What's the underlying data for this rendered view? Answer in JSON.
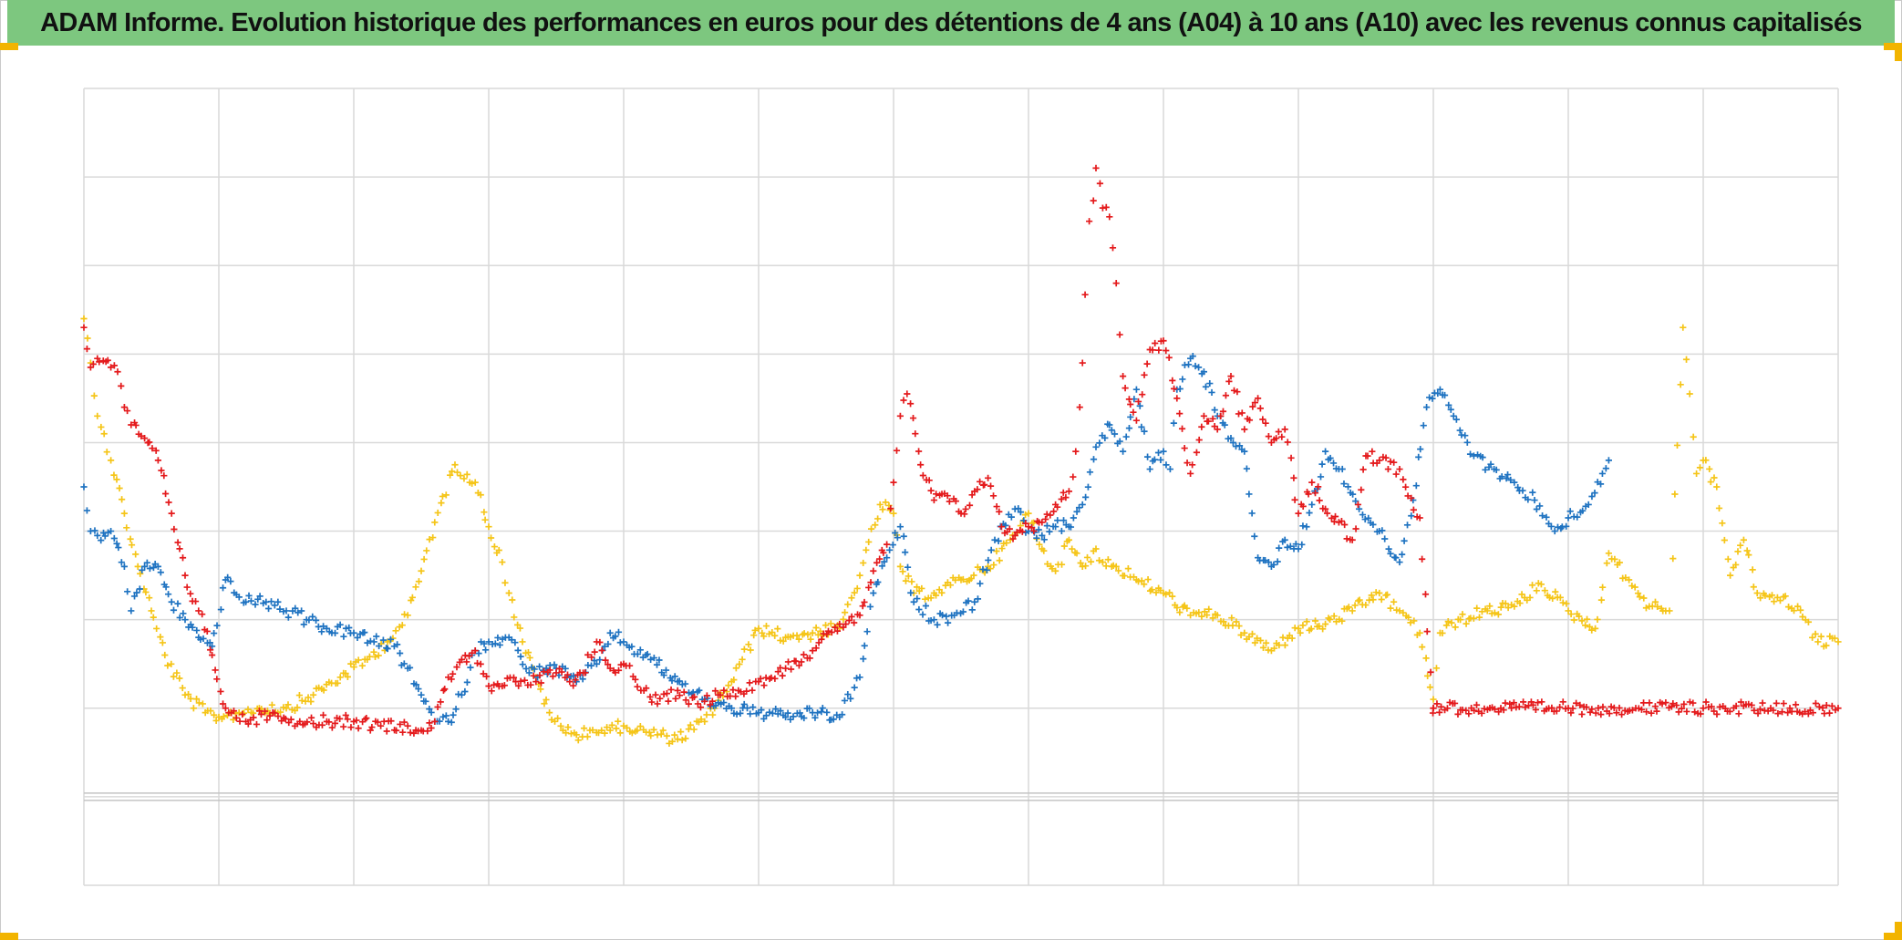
{
  "chart_data": {
    "type": "scatter",
    "title": "ADAM Informe. Evolution historique des performances en euros pour des détentions de 4 ans (A04) à 10 ans (A10) avec les revenus connus capitalisés",
    "xlabel": "",
    "ylabel": "",
    "grid": true,
    "legend": "none",
    "marker": "plus",
    "xlim": [
      0,
      13
    ],
    "ylim": [
      -1,
      8
    ],
    "series": [
      {
        "color": "#f5c518",
        "x": [
          0.0,
          0.05,
          0.1,
          0.15,
          0.2,
          0.3,
          0.4,
          0.5,
          0.6,
          0.75,
          0.9,
          1.0,
          1.15,
          1.3,
          1.5,
          1.7,
          1.9,
          2.1,
          2.25,
          2.4,
          2.5,
          2.6,
          2.75,
          2.9,
          3.0,
          3.1,
          3.15,
          3.25,
          3.35,
          3.45,
          3.55,
          3.65,
          3.75,
          3.9,
          4.0,
          4.1,
          4.25,
          4.4,
          4.6,
          4.8,
          5.0,
          5.2,
          5.4,
          5.6,
          5.75,
          5.9,
          6.0,
          6.05,
          6.15,
          6.3,
          6.5,
          6.7,
          6.9,
          7.0,
          7.1,
          7.2,
          7.3,
          7.4,
          7.5,
          7.55,
          7.65,
          7.8,
          8.0,
          8.2,
          8.4,
          8.6,
          8.8,
          9.0,
          9.2,
          9.4,
          9.6,
          9.75,
          9.9,
          10.0,
          10.05,
          10.2,
          10.4,
          10.6,
          10.8,
          11.0,
          11.2,
          11.3,
          11.45,
          11.6,
          11.75,
          11.85,
          11.9,
          11.95,
          12.0,
          12.1,
          12.2,
          12.3,
          12.4,
          12.55,
          12.7,
          12.85,
          13.0
        ],
        "values": [
          5.4,
          4.9,
          4.3,
          4.1,
          3.8,
          3.2,
          2.6,
          2.1,
          1.6,
          1.15,
          0.95,
          0.9,
          0.95,
          1.0,
          1.0,
          1.15,
          1.35,
          1.55,
          1.75,
          2.05,
          2.55,
          3.1,
          3.75,
          3.55,
          3.05,
          2.65,
          2.3,
          1.75,
          1.35,
          0.95,
          0.75,
          0.7,
          0.75,
          0.75,
          0.8,
          0.75,
          0.7,
          0.65,
          0.85,
          1.3,
          1.9,
          1.8,
          1.85,
          1.9,
          2.5,
          3.3,
          3.2,
          2.6,
          2.3,
          2.3,
          2.45,
          2.6,
          2.95,
          3.2,
          2.8,
          2.55,
          2.9,
          2.6,
          2.8,
          2.65,
          2.6,
          2.45,
          2.3,
          2.05,
          2.05,
          1.85,
          1.65,
          1.9,
          1.95,
          2.1,
          2.3,
          2.1,
          1.85,
          1.1,
          1.85,
          2.0,
          2.1,
          2.15,
          2.4,
          2.1,
          1.9,
          2.75,
          2.45,
          2.15,
          2.1,
          5.3,
          4.55,
          3.65,
          3.8,
          3.5,
          2.5,
          2.9,
          2.3,
          2.25,
          2.15,
          1.75,
          1.75
        ]
      },
      {
        "color": "#1f73c1",
        "x": [
          0.0,
          0.05,
          0.1,
          0.2,
          0.3,
          0.35,
          0.45,
          0.55,
          0.65,
          0.75,
          0.85,
          0.95,
          1.05,
          1.2,
          1.35,
          1.5,
          1.65,
          1.8,
          2.0,
          2.15,
          2.3,
          2.4,
          2.5,
          2.6,
          2.7,
          2.8,
          2.9,
          3.0,
          3.15,
          3.3,
          3.5,
          3.65,
          3.8,
          3.9,
          4.0,
          4.2,
          4.4,
          4.6,
          4.8,
          5.0,
          5.2,
          5.4,
          5.6,
          5.75,
          5.85,
          5.95,
          6.05,
          6.15,
          6.3,
          6.45,
          6.6,
          6.75,
          6.9,
          7.0,
          7.1,
          7.2,
          7.3,
          7.4,
          7.5,
          7.6,
          7.7,
          7.8,
          7.9,
          8.0,
          8.05,
          8.1,
          8.2,
          8.3,
          8.4,
          8.5,
          8.6,
          8.7,
          8.8,
          8.9,
          9.0,
          9.1,
          9.2,
          9.3,
          9.45,
          9.6,
          9.75,
          9.85,
          9.95,
          10.05,
          10.15,
          10.3,
          10.45,
          10.6,
          10.75,
          10.9,
          11.0,
          11.15,
          11.3
        ],
        "values": [
          3.5,
          3.0,
          2.95,
          3.0,
          2.6,
          2.1,
          2.6,
          2.6,
          2.2,
          2.0,
          1.8,
          1.7,
          2.45,
          2.2,
          2.2,
          2.1,
          2.0,
          1.9,
          1.85,
          1.75,
          1.7,
          1.45,
          1.15,
          0.85,
          0.85,
          1.15,
          1.65,
          1.75,
          1.8,
          1.4,
          1.45,
          1.3,
          1.5,
          1.85,
          1.75,
          1.55,
          1.3,
          1.1,
          1.0,
          0.95,
          0.9,
          0.95,
          0.9,
          1.35,
          2.3,
          2.7,
          3.05,
          2.2,
          2.0,
          2.05,
          2.2,
          2.9,
          3.25,
          3.0,
          2.95,
          3.05,
          3.05,
          3.3,
          3.95,
          4.2,
          3.9,
          4.6,
          3.7,
          3.9,
          3.7,
          4.6,
          4.95,
          4.8,
          4.3,
          4.05,
          3.9,
          2.7,
          2.6,
          2.9,
          2.8,
          3.3,
          3.9,
          3.7,
          3.25,
          3.0,
          2.65,
          3.35,
          4.4,
          4.6,
          4.3,
          3.85,
          3.7,
          3.55,
          3.35,
          3.0,
          3.15,
          3.3,
          3.8
        ]
      },
      {
        "color": "#e41a1c",
        "x": [
          0.0,
          0.05,
          0.1,
          0.2,
          0.25,
          0.3,
          0.35,
          0.45,
          0.55,
          0.65,
          0.75,
          0.85,
          0.95,
          1.05,
          1.2,
          1.4,
          1.6,
          1.8,
          2.0,
          2.2,
          2.4,
          2.5,
          2.6,
          2.7,
          2.8,
          2.9,
          3.0,
          3.1,
          3.2,
          3.35,
          3.5,
          3.6,
          3.7,
          3.8,
          3.9,
          4.0,
          4.15,
          4.25,
          4.4,
          4.55,
          4.7,
          4.85,
          5.0,
          5.2,
          5.4,
          5.6,
          5.75,
          5.85,
          5.95,
          6.0,
          6.05,
          6.1,
          6.2,
          6.3,
          6.4,
          6.5,
          6.6,
          6.7,
          6.8,
          6.9,
          7.0,
          7.1,
          7.2,
          7.3,
          7.35,
          7.4,
          7.45,
          7.5,
          7.55,
          7.6,
          7.65,
          7.7,
          7.8,
          7.9,
          8.0,
          8.1,
          8.2,
          8.3,
          8.4,
          8.5,
          8.6,
          8.7,
          8.8,
          8.9,
          9.0,
          9.1,
          9.2,
          9.3,
          9.4,
          9.5,
          9.6,
          9.75,
          9.9,
          10.0,
          10.0,
          10.5,
          11.0,
          11.5,
          12.0,
          12.5,
          13.0
        ],
        "values": [
          5.3,
          4.85,
          4.95,
          4.85,
          4.8,
          4.4,
          4.2,
          4.05,
          3.8,
          3.2,
          2.5,
          2.1,
          1.6,
          1.0,
          0.85,
          0.95,
          0.85,
          0.85,
          0.85,
          0.8,
          0.8,
          0.75,
          0.85,
          1.35,
          1.55,
          1.65,
          1.25,
          1.25,
          1.3,
          1.3,
          1.4,
          1.3,
          1.4,
          1.75,
          1.45,
          1.5,
          1.2,
          1.05,
          1.2,
          1.05,
          1.15,
          1.2,
          1.3,
          1.45,
          1.65,
          1.95,
          2.05,
          2.55,
          2.85,
          3.55,
          4.3,
          4.55,
          3.75,
          3.35,
          3.4,
          3.2,
          3.45,
          3.6,
          3.05,
          2.95,
          3.05,
          3.1,
          3.3,
          3.45,
          3.9,
          4.9,
          6.5,
          7.1,
          6.65,
          6.55,
          5.8,
          4.75,
          4.25,
          5.05,
          5.15,
          4.5,
          3.65,
          4.3,
          4.15,
          4.75,
          4.15,
          4.5,
          4.0,
          4.15,
          3.2,
          3.55,
          3.25,
          3.1,
          2.9,
          3.85,
          3.8,
          3.7,
          3.15,
          1.0,
          1.0,
          1.0,
          1.0,
          1.0,
          1.0,
          1.0,
          1.0
        ]
      }
    ]
  }
}
